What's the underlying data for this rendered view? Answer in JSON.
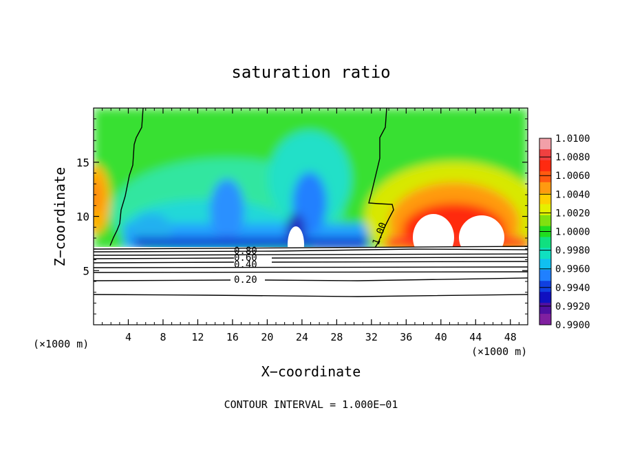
{
  "chart_data": {
    "type": "heatmap",
    "title": "saturation ratio",
    "xlabel": "X−coordinate",
    "ylabel": "Z−coordinate",
    "x_unit": "(×1000 m)",
    "y_unit": "(×1000 m)",
    "xlim": [
      0,
      50
    ],
    "ylim": [
      0,
      20
    ],
    "x_ticks": [
      4,
      8,
      12,
      16,
      20,
      24,
      28,
      32,
      36,
      40,
      44,
      48
    ],
    "y_ticks": [
      5,
      10,
      15
    ],
    "footer": "CONTOUR INTERVAL = 1.000E−01",
    "colorbar": {
      "ticks": [
        "1.0100",
        "1.0080",
        "1.0060",
        "1.0040",
        "1.0020",
        "1.0000",
        "0.9980",
        "0.9960",
        "0.9940",
        "0.9920",
        "0.9900"
      ],
      "colors": [
        "#f2a0a8",
        "#f04040",
        "#ff2a10",
        "#ff5a10",
        "#ff9a10",
        "#ffd000",
        "#e6f000",
        "#80e010",
        "#20dd20",
        "#10e080",
        "#10e0c0",
        "#10c0f0",
        "#2080ff",
        "#1040e0",
        "#1010c0",
        "#5010a0",
        "#8020a0"
      ]
    },
    "contour_labels": [
      "1.00",
      "0.80",
      "0.60",
      "0.40",
      "0.20"
    ],
    "contour_levels": [
      0.2,
      0.4,
      0.6,
      0.8,
      1.0
    ]
  }
}
